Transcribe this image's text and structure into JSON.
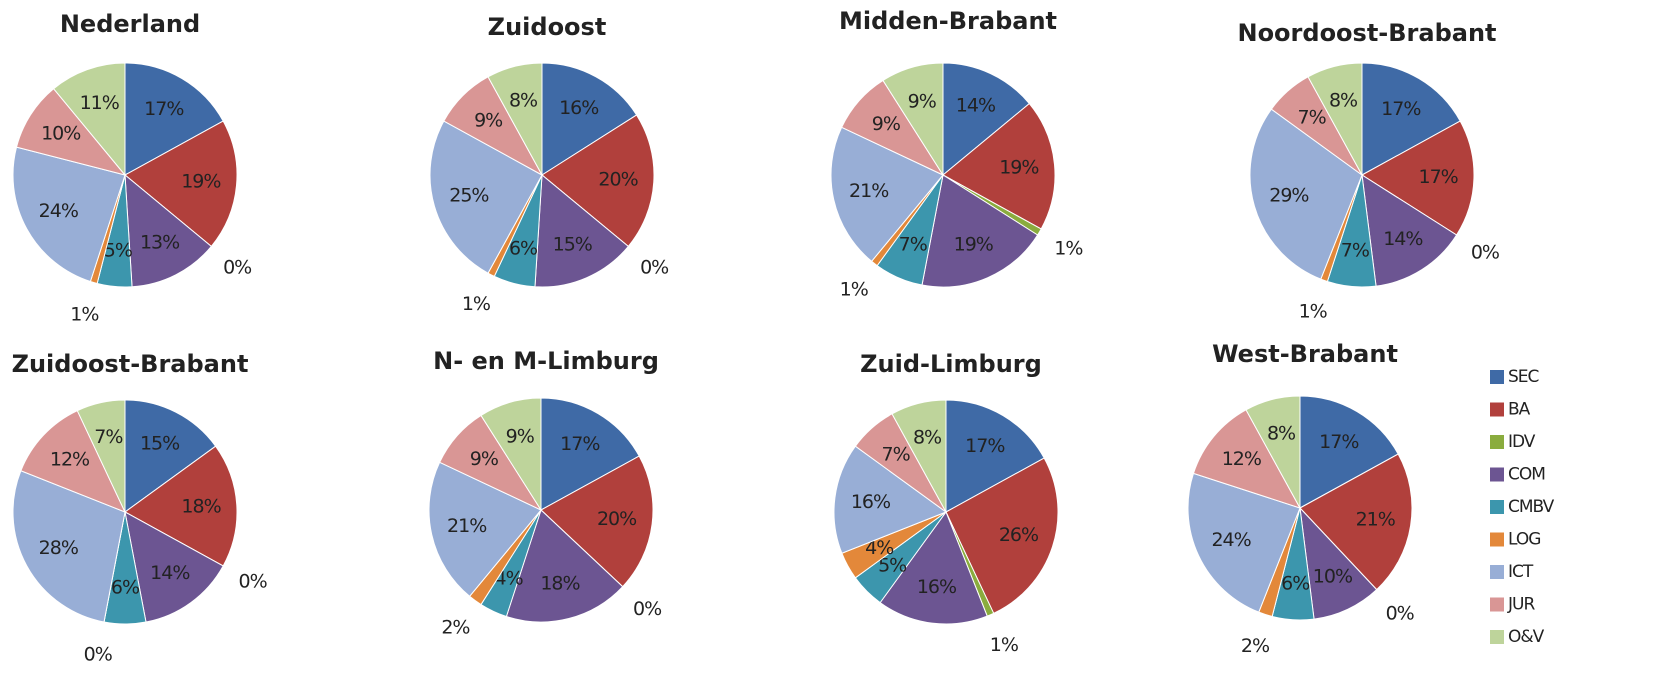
{
  "chart_data": [
    {
      "type": "pie",
      "title": "Nederland",
      "categories": [
        "SEC",
        "BA",
        "IDV",
        "COM",
        "CMBV",
        "LOG",
        "ICT",
        "JUR",
        "O&V"
      ],
      "colors": [
        "#3f6aa6",
        "#b1403c",
        "#8aac3e",
        "#6c5592",
        "#3c96ad",
        "#e3883a",
        "#98aed6",
        "#d99695",
        "#bed49b"
      ],
      "values": [
        17,
        19,
        0,
        13,
        5,
        1,
        24,
        10,
        11
      ],
      "value_labels": [
        "17%",
        "19%",
        "0%",
        "13%",
        "5%",
        "1%",
        "24%",
        "10%",
        "11%"
      ]
    },
    {
      "type": "pie",
      "title": "Zuidoost",
      "categories": [
        "SEC",
        "BA",
        "IDV",
        "COM",
        "CMBV",
        "LOG",
        "ICT",
        "JUR",
        "O&V"
      ],
      "colors": [
        "#3f6aa6",
        "#b1403c",
        "#8aac3e",
        "#6c5592",
        "#3c96ad",
        "#e3883a",
        "#98aed6",
        "#d99695",
        "#bed49b"
      ],
      "values": [
        16,
        20,
        0,
        15,
        6,
        1,
        25,
        9,
        8
      ],
      "value_labels": [
        "16%",
        "20%",
        "0%",
        "15%",
        "6%",
        "1%",
        "25%",
        "9%",
        "8%"
      ]
    },
    {
      "type": "pie",
      "title": "Midden-Brabant",
      "categories": [
        "SEC",
        "BA",
        "IDV",
        "COM",
        "CMBV",
        "LOG",
        "ICT",
        "JUR",
        "O&V"
      ],
      "colors": [
        "#3f6aa6",
        "#b1403c",
        "#8aac3e",
        "#6c5592",
        "#3c96ad",
        "#e3883a",
        "#98aed6",
        "#d99695",
        "#bed49b"
      ],
      "values": [
        14,
        19,
        1,
        19,
        7,
        1,
        21,
        9,
        9
      ],
      "value_labels": [
        "14%",
        "19%",
        "1%",
        "19%",
        "7%",
        "1%",
        "21%",
        "9%",
        "9%"
      ]
    },
    {
      "type": "pie",
      "title": "Noordoost-Brabant",
      "categories": [
        "SEC",
        "BA",
        "IDV",
        "COM",
        "CMBV",
        "LOG",
        "ICT",
        "JUR",
        "O&V"
      ],
      "colors": [
        "#3f6aa6",
        "#b1403c",
        "#8aac3e",
        "#6c5592",
        "#3c96ad",
        "#e3883a",
        "#98aed6",
        "#d99695",
        "#bed49b"
      ],
      "values": [
        17,
        17,
        0,
        14,
        7,
        1,
        29,
        7,
        8
      ],
      "value_labels": [
        "17%",
        "17%",
        "0%",
        "14%",
        "7%",
        "1%",
        "29%",
        "7%",
        "8%"
      ]
    },
    {
      "type": "pie",
      "title": "Zuidoost-Brabant",
      "categories": [
        "SEC",
        "BA",
        "IDV",
        "COM",
        "CMBV",
        "LOG",
        "ICT",
        "JUR",
        "O&V"
      ],
      "colors": [
        "#3f6aa6",
        "#b1403c",
        "#8aac3e",
        "#6c5592",
        "#3c96ad",
        "#e3883a",
        "#98aed6",
        "#d99695",
        "#bed49b"
      ],
      "values": [
        15,
        18,
        0,
        14,
        6,
        0,
        28,
        12,
        7
      ],
      "value_labels": [
        "15%",
        "18%",
        "0%",
        "14%",
        "6%",
        "0%",
        "28%",
        "12%",
        "7%"
      ]
    },
    {
      "type": "pie",
      "title": "N- en M-Limburg",
      "categories": [
        "SEC",
        "BA",
        "IDV",
        "COM",
        "CMBV",
        "LOG",
        "ICT",
        "JUR",
        "O&V"
      ],
      "colors": [
        "#3f6aa6",
        "#b1403c",
        "#8aac3e",
        "#6c5592",
        "#3c96ad",
        "#e3883a",
        "#98aed6",
        "#d99695",
        "#bed49b"
      ],
      "values": [
        17,
        20,
        0,
        18,
        4,
        2,
        21,
        9,
        9
      ],
      "value_labels": [
        "17%",
        "20%",
        "0%",
        "18%",
        "4%",
        "2%",
        "21%",
        "9%",
        "9%"
      ]
    },
    {
      "type": "pie",
      "title": "Zuid-Limburg",
      "categories": [
        "SEC",
        "BA",
        "IDV",
        "COM",
        "CMBV",
        "LOG",
        "ICT",
        "JUR",
        "O&V"
      ],
      "colors": [
        "#3f6aa6",
        "#b1403c",
        "#8aac3e",
        "#6c5592",
        "#3c96ad",
        "#e3883a",
        "#98aed6",
        "#d99695",
        "#bed49b"
      ],
      "values": [
        17,
        26,
        1,
        16,
        5,
        4,
        16,
        7,
        8
      ],
      "value_labels": [
        "17%",
        "26%",
        "1%",
        "16%",
        "5%",
        "4%",
        "16%",
        "7%",
        "8%"
      ]
    },
    {
      "type": "pie",
      "title": "West-Brabant",
      "categories": [
        "SEC",
        "BA",
        "IDV",
        "COM",
        "CMBV",
        "LOG",
        "ICT",
        "JUR",
        "O&V"
      ],
      "colors": [
        "#3f6aa6",
        "#b1403c",
        "#8aac3e",
        "#6c5592",
        "#3c96ad",
        "#e3883a",
        "#98aed6",
        "#d99695",
        "#bed49b"
      ],
      "values": [
        17,
        21,
        0,
        10,
        6,
        2,
        24,
        12,
        8
      ],
      "value_labels": [
        "17%",
        "21%",
        "0%",
        "10%",
        "6%",
        "2%",
        "24%",
        "12%",
        "8%"
      ]
    }
  ]
}
